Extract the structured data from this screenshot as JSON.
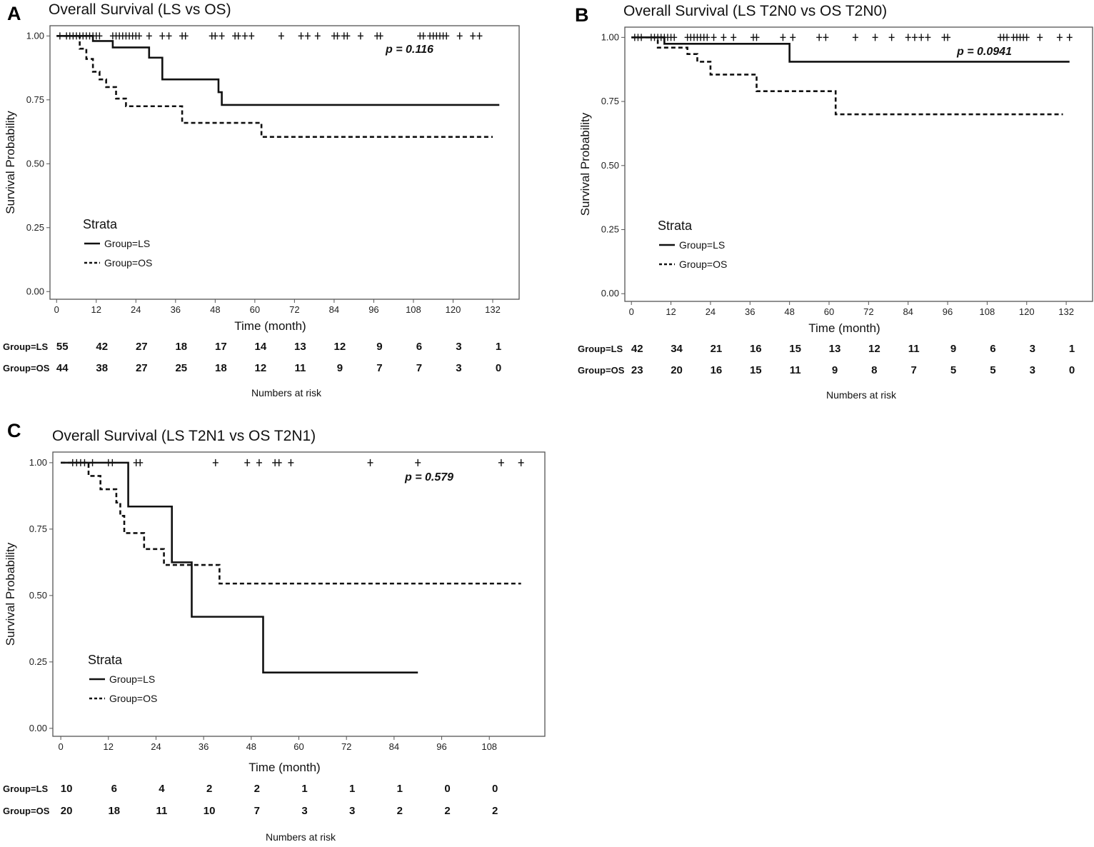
{
  "chart_data": [
    {
      "type": "line",
      "panel": "A",
      "title": "Overall Survival (LS vs OS)",
      "xlabel": "Time (month)",
      "ylabel": "Survival Probability",
      "xticks": [
        0,
        12,
        24,
        36,
        48,
        60,
        72,
        84,
        96,
        108,
        120,
        132
      ],
      "yticks": [
        "0.00",
        "0.25",
        "0.50",
        "0.75",
        "1.00"
      ],
      "xlim": [
        -2,
        140
      ],
      "ylim": [
        -0.03,
        1.04
      ],
      "grid": false,
      "p_value": "p = 0.116",
      "legend": {
        "title": "Strata",
        "position": "bottom-left",
        "entries": [
          "Group=LS",
          "Group=OS"
        ]
      },
      "series": [
        {
          "name": "Group=LS",
          "dash": "solid",
          "x": [
            0,
            11,
            17,
            28,
            32,
            49,
            50,
            134
          ],
          "y": [
            1.0,
            0.98,
            0.955,
            0.915,
            0.83,
            0.78,
            0.73,
            0.73
          ],
          "censor_x": [
            1,
            3,
            4,
            5,
            6,
            7,
            8,
            9,
            10,
            11,
            12,
            13,
            17,
            18,
            19,
            20,
            21,
            22,
            23,
            24,
            25,
            28,
            32,
            34,
            38,
            39,
            47,
            48,
            50,
            54,
            55,
            57,
            59,
            68,
            74,
            76,
            79,
            84,
            85,
            87,
            88,
            92,
            97,
            98,
            110,
            111,
            113,
            114,
            115,
            116,
            117,
            118,
            122,
            126,
            128
          ]
        },
        {
          "name": "Group=OS",
          "dash": "dashed",
          "x": [
            0,
            7,
            9,
            11,
            13,
            15,
            18,
            21,
            26,
            38,
            62,
            132
          ],
          "y": [
            1.0,
            0.95,
            0.91,
            0.86,
            0.83,
            0.8,
            0.755,
            0.725,
            0.725,
            0.66,
            0.605,
            0.605
          ],
          "censor_x": []
        }
      ],
      "risk_table": {
        "rows": [
          {
            "group": "Group=LS",
            "values": [
              55,
              42,
              27,
              18,
              17,
              14,
              13,
              12,
              9,
              6,
              3,
              1
            ]
          },
          {
            "group": "Group=OS",
            "values": [
              44,
              38,
              27,
              25,
              18,
              12,
              11,
              9,
              7,
              7,
              3,
              0
            ]
          }
        ],
        "caption": "Numbers at risk"
      }
    },
    {
      "type": "line",
      "panel": "B",
      "title": "Overall Survival (LS T2N0 vs OS T2N0)",
      "xlabel": "Time (month)",
      "ylabel": "Survival Probability",
      "xticks": [
        0,
        12,
        24,
        36,
        48,
        60,
        72,
        84,
        96,
        108,
        120,
        132
      ],
      "yticks": [
        "0.00",
        "0.25",
        "0.50",
        "0.75",
        "1.00"
      ],
      "xlim": [
        -2,
        140
      ],
      "ylim": [
        -0.03,
        1.04
      ],
      "grid": false,
      "p_value": "p = 0.0941",
      "legend": {
        "title": "Strata",
        "position": "bottom-left",
        "entries": [
          "Group=LS",
          "Group=OS"
        ]
      },
      "series": [
        {
          "name": "Group=LS",
          "dash": "solid",
          "x": [
            0,
            10,
            48,
            133
          ],
          "y": [
            1.0,
            0.975,
            0.905,
            0.905
          ],
          "censor_x": [
            1,
            2,
            3,
            6,
            7,
            8,
            9,
            10,
            11,
            12,
            13,
            17,
            18,
            19,
            20,
            21,
            22,
            23,
            25,
            28,
            31,
            37,
            38,
            46,
            49,
            57,
            59,
            68,
            74,
            79,
            84,
            86,
            88,
            90,
            95,
            96,
            112,
            113,
            114,
            116,
            117,
            118,
            119,
            120,
            124,
            130,
            133
          ]
        },
        {
          "name": "Group=OS",
          "dash": "dashed",
          "x": [
            0,
            8,
            17,
            20,
            24,
            38,
            62,
            131
          ],
          "y": [
            1.0,
            0.96,
            0.935,
            0.905,
            0.855,
            0.79,
            0.7,
            0.7
          ],
          "censor_x": []
        }
      ],
      "risk_table": {
        "rows": [
          {
            "group": "Group=LS",
            "values": [
              42,
              34,
              21,
              16,
              15,
              13,
              12,
              11,
              9,
              6,
              3,
              1
            ]
          },
          {
            "group": "Group=OS",
            "values": [
              23,
              20,
              16,
              15,
              11,
              9,
              8,
              7,
              5,
              5,
              3,
              0
            ]
          }
        ],
        "caption": "Numbers at risk"
      }
    },
    {
      "type": "line",
      "panel": "C",
      "title": "Overall Survival (LS T2N1 vs OS T2N1)",
      "xlabel": "Time (month)",
      "ylabel": "Survival Probability",
      "xticks": [
        0,
        12,
        24,
        36,
        48,
        60,
        72,
        84,
        96,
        108
      ],
      "yticks": [
        "0.00",
        "0.25",
        "0.50",
        "0.75",
        "1.00"
      ],
      "xlim": [
        -2,
        122
      ],
      "ylim": [
        -0.03,
        1.04
      ],
      "grid": false,
      "p_value": "p = 0.579",
      "legend": {
        "title": "Strata",
        "position": "bottom-left",
        "entries": [
          "Group=LS",
          "Group=OS"
        ]
      },
      "series": [
        {
          "name": "Group=LS",
          "dash": "solid",
          "x": [
            0,
            17,
            28,
            33,
            51,
            90
          ],
          "y": [
            1.0,
            0.835,
            0.625,
            0.42,
            0.21,
            0.21
          ],
          "censor_x": [
            3,
            4,
            5,
            6,
            8,
            12,
            13,
            19,
            20,
            39,
            47,
            50,
            54,
            55,
            58,
            78,
            90,
            111,
            116
          ]
        },
        {
          "name": "Group=OS",
          "dash": "dashed",
          "x": [
            0,
            7,
            10,
            14,
            15,
            16,
            21,
            26,
            40,
            116
          ],
          "y": [
            1.0,
            0.95,
            0.9,
            0.85,
            0.8,
            0.735,
            0.675,
            0.615,
            0.545,
            0.545
          ],
          "censor_x": []
        }
      ],
      "risk_table": {
        "rows": [
          {
            "group": "Group=LS",
            "values": [
              10,
              6,
              4,
              2,
              2,
              1,
              1,
              1,
              0,
              0
            ]
          },
          {
            "group": "Group=OS",
            "values": [
              20,
              18,
              11,
              10,
              7,
              3,
              3,
              2,
              2,
              2
            ]
          }
        ],
        "caption": "Numbers at risk"
      }
    }
  ]
}
